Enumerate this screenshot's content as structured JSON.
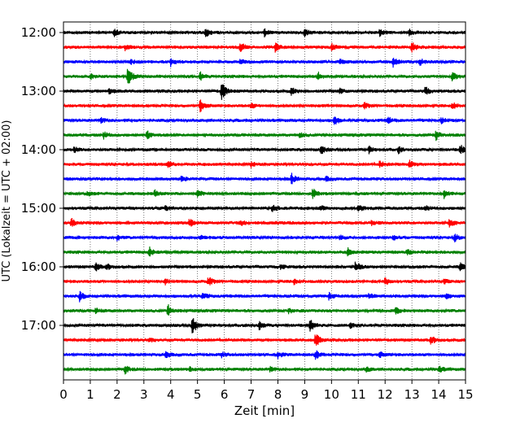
{
  "chart_data": {
    "type": "line",
    "title": "",
    "xlabel": "Zeit  [min]",
    "ylabel": "UTC (Lokalzeit = UTC + 02:00)",
    "xlim": [
      0,
      15
    ],
    "x_ticks": [
      "0",
      "1",
      "2",
      "3",
      "4",
      "5",
      "6",
      "7",
      "8",
      "9",
      "10",
      "11",
      "12",
      "13",
      "14",
      "15"
    ],
    "y_ticks": [
      "12:00",
      "13:00",
      "14:00",
      "15:00",
      "16:00",
      "17:00"
    ],
    "minutes_per_row": 15,
    "grid": "vertical dotted",
    "row_colors": [
      "#000000",
      "#ff0000",
      "#0000ff",
      "#008000"
    ],
    "rows": [
      {
        "start": "12:00",
        "events": [
          [
            1.9,
            4
          ],
          [
            5.3,
            6
          ],
          [
            7.5,
            4
          ],
          [
            9.0,
            5
          ],
          [
            11.8,
            4
          ],
          [
            12.9,
            4
          ]
        ]
      },
      {
        "start": "12:15",
        "events": [
          [
            2.3,
            3
          ],
          [
            6.6,
            6
          ],
          [
            7.9,
            5
          ],
          [
            10.0,
            4
          ],
          [
            13.0,
            6
          ]
        ]
      },
      {
        "start": "12:30",
        "events": [
          [
            2.5,
            3
          ],
          [
            4.0,
            5
          ],
          [
            6.6,
            3
          ],
          [
            10.3,
            3
          ],
          [
            12.3,
            7
          ],
          [
            13.3,
            4
          ]
        ]
      },
      {
        "start": "12:45",
        "events": [
          [
            1.0,
            3
          ],
          [
            2.4,
            12
          ],
          [
            5.1,
            5
          ],
          [
            9.5,
            5
          ],
          [
            14.5,
            7
          ]
        ]
      },
      {
        "start": "13:00",
        "events": [
          [
            1.7,
            3
          ],
          [
            5.9,
            12
          ],
          [
            8.5,
            4
          ],
          [
            10.3,
            3
          ],
          [
            13.5,
            5
          ]
        ]
      },
      {
        "start": "13:15",
        "events": [
          [
            5.1,
            8
          ],
          [
            7.0,
            3
          ],
          [
            11.2,
            4
          ],
          [
            14.5,
            4
          ]
        ]
      },
      {
        "start": "13:30",
        "events": [
          [
            1.4,
            3
          ],
          [
            10.1,
            6
          ],
          [
            12.1,
            4
          ],
          [
            14.1,
            3
          ]
        ]
      },
      {
        "start": "13:45",
        "events": [
          [
            1.5,
            4
          ],
          [
            3.1,
            5
          ],
          [
            8.8,
            3
          ],
          [
            13.9,
            6
          ]
        ]
      },
      {
        "start": "14:00",
        "events": [
          [
            0.4,
            3
          ],
          [
            9.6,
            6
          ],
          [
            11.4,
            4
          ],
          [
            12.5,
            4
          ],
          [
            14.8,
            7
          ]
        ]
      },
      {
        "start": "14:15",
        "events": [
          [
            3.9,
            4
          ],
          [
            7.0,
            3
          ],
          [
            11.8,
            4
          ],
          [
            12.9,
            5
          ]
        ]
      },
      {
        "start": "14:30",
        "events": [
          [
            4.4,
            4
          ],
          [
            8.5,
            7
          ],
          [
            9.8,
            3
          ]
        ]
      },
      {
        "start": "14:45",
        "events": [
          [
            0.9,
            3
          ],
          [
            3.4,
            4
          ],
          [
            5.0,
            5
          ],
          [
            9.3,
            6
          ],
          [
            14.2,
            5
          ]
        ]
      },
      {
        "start": "15:00",
        "events": [
          [
            3.8,
            3
          ],
          [
            7.8,
            5
          ],
          [
            9.6,
            3
          ],
          [
            11.0,
            4
          ],
          [
            13.5,
            3
          ]
        ]
      },
      {
        "start": "15:15",
        "events": [
          [
            0.3,
            5
          ],
          [
            4.7,
            5
          ],
          [
            6.6,
            3
          ],
          [
            11.5,
            3
          ],
          [
            14.4,
            6
          ]
        ]
      },
      {
        "start": "15:30",
        "events": [
          [
            2.0,
            3
          ],
          [
            5.1,
            3
          ],
          [
            10.3,
            3
          ],
          [
            12.3,
            3
          ],
          [
            14.6,
            5
          ]
        ]
      },
      {
        "start": "15:45",
        "events": [
          [
            3.2,
            6
          ],
          [
            10.6,
            5
          ],
          [
            12.8,
            3
          ]
        ]
      },
      {
        "start": "16:00",
        "events": [
          [
            1.2,
            5
          ],
          [
            1.6,
            4
          ],
          [
            8.1,
            3
          ],
          [
            10.9,
            7
          ],
          [
            14.8,
            5
          ]
        ]
      },
      {
        "start": "16:15",
        "events": [
          [
            3.8,
            3
          ],
          [
            5.4,
            6
          ],
          [
            8.6,
            3
          ],
          [
            12.0,
            4
          ],
          [
            14.2,
            3
          ]
        ]
      },
      {
        "start": "16:30",
        "events": [
          [
            0.6,
            6
          ],
          [
            5.2,
            5
          ],
          [
            9.9,
            4
          ],
          [
            11.4,
            3
          ],
          [
            14.3,
            4
          ]
        ]
      },
      {
        "start": "16:45",
        "events": [
          [
            1.2,
            3
          ],
          [
            3.9,
            7
          ],
          [
            8.4,
            3
          ],
          [
            12.4,
            4
          ]
        ]
      },
      {
        "start": "17:00",
        "events": [
          [
            4.8,
            12
          ],
          [
            7.3,
            6
          ],
          [
            9.2,
            8
          ],
          [
            10.7,
            3
          ]
        ]
      },
      {
        "start": "17:15",
        "events": [
          [
            3.2,
            3
          ],
          [
            9.4,
            9
          ],
          [
            13.7,
            6
          ]
        ]
      },
      {
        "start": "17:30",
        "events": [
          [
            3.8,
            5
          ],
          [
            5.9,
            3
          ],
          [
            8.0,
            4
          ],
          [
            9.4,
            6
          ],
          [
            11.8,
            3
          ]
        ]
      },
      {
        "start": "17:45",
        "events": [
          [
            2.3,
            5
          ],
          [
            4.7,
            3
          ],
          [
            7.7,
            3
          ],
          [
            11.3,
            3
          ],
          [
            14.0,
            4
          ]
        ]
      }
    ]
  }
}
